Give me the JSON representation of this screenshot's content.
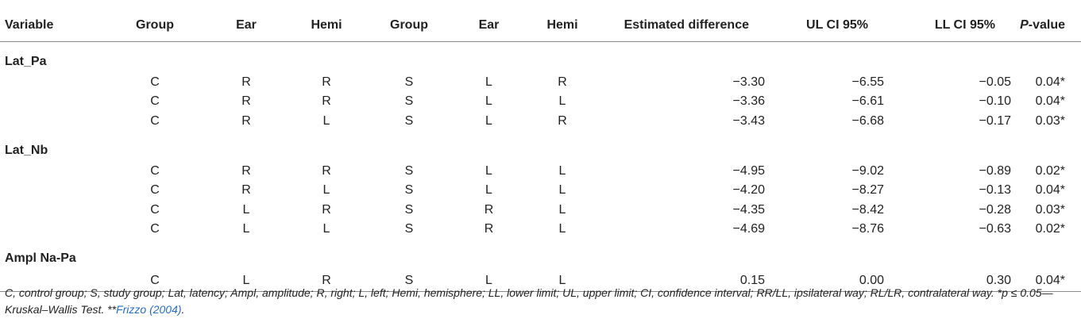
{
  "headers": [
    "Variable",
    "Group",
    "Ear",
    "Hemi",
    "Group",
    "Ear",
    "Hemi",
    "Estimated difference",
    "UL CI 95%",
    "LL CI 95%",
    "-value"
  ],
  "pvalue_prefix": "P",
  "groups": [
    {
      "label": "Lat_Pa",
      "rows": [
        [
          "C",
          "R",
          "R",
          "S",
          "L",
          "R",
          "−3.30",
          "−6.55",
          "−0.05",
          "0.04*"
        ],
        [
          "C",
          "R",
          "R",
          "S",
          "L",
          "L",
          "−3.36",
          "−6.61",
          "−0.10",
          "0.04*"
        ],
        [
          "C",
          "R",
          "L",
          "S",
          "L",
          "R",
          "−3.43",
          "−6.68",
          "−0.17",
          "0.03*"
        ]
      ]
    },
    {
      "label": "Lat_Nb",
      "rows": [
        [
          "C",
          "R",
          "R",
          "S",
          "L",
          "L",
          "−4.95",
          "−9.02",
          "−0.89",
          "0.02*"
        ],
        [
          "C",
          "R",
          "L",
          "S",
          "L",
          "L",
          "−4.20",
          "−8.27",
          "−0.13",
          "0.04*"
        ],
        [
          "C",
          "L",
          "R",
          "S",
          "R",
          "L",
          "−4.35",
          "−8.42",
          "−0.28",
          "0.03*"
        ],
        [
          "C",
          "L",
          "L",
          "S",
          "R",
          "L",
          "−4.69",
          "−8.76",
          "−0.63",
          "0.02*"
        ]
      ]
    },
    {
      "label": "Ampl Na-Pa",
      "rows": [
        [
          "C",
          "L",
          "R",
          "S",
          "L",
          "L",
          "0.15",
          "0.00",
          "0.30",
          "0.04*"
        ]
      ]
    }
  ],
  "footnote": {
    "text": "C, control group; S, study group; Lat, latency; Ampl, amplitude; R, right; L, left; Hemi, hemisphere; LL, lower limit; UL, upper limit; CI, confidence interval; RR/LL, ipsilateral way; RL/LR, contralateral way. *p ≤ 0.05—Kruskal–Wallis Test. **",
    "reference": "Frizzo (2004)",
    "end": "."
  },
  "colors": {
    "text": "#222222",
    "rule": "#8a8a8a",
    "link": "#2a6ebb"
  }
}
